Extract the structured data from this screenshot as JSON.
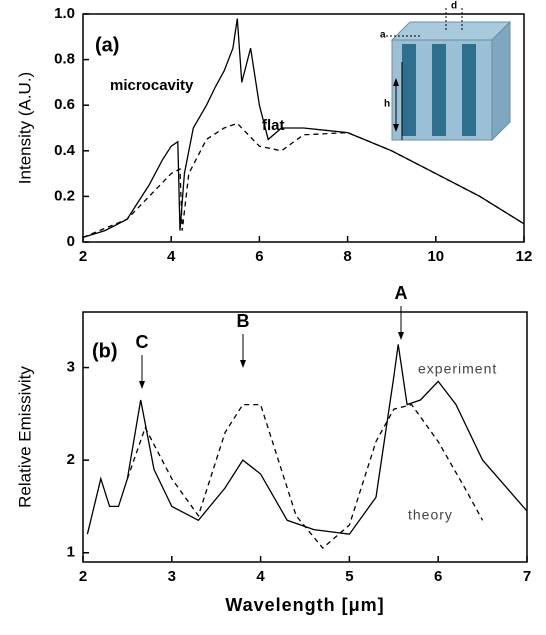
{
  "chart_data": [
    {
      "type": "line",
      "ylabel": "Intensity (A.U.)",
      "xlim": [
        2,
        12
      ],
      "xticks": [
        2,
        4,
        6,
        8,
        10,
        12
      ],
      "ylim": [
        0,
        1.0
      ],
      "yticks": [
        0,
        0.2,
        0.4,
        0.6,
        0.8,
        {
          "value": 1.0,
          "label": "1.0"
        }
      ],
      "annotations": [
        "(a)",
        "d",
        "a",
        "h"
      ],
      "series": [
        {
          "name": "microcavity",
          "color": "#000000",
          "style": "solid",
          "x": [
            2,
            2.5,
            3,
            3.5,
            3.8,
            4.0,
            4.15,
            4.2,
            4.3,
            4.5,
            4.8,
            5.0,
            5.2,
            5.4,
            5.5,
            5.6,
            5.8,
            6.0,
            6.2,
            6.5,
            7.0,
            7.5,
            8,
            9,
            10,
            11,
            12
          ],
          "values": [
            0.02,
            0.05,
            0.1,
            0.25,
            0.36,
            0.42,
            0.44,
            0.05,
            0.3,
            0.5,
            0.6,
            0.68,
            0.75,
            0.85,
            0.98,
            0.7,
            0.85,
            0.6,
            0.45,
            0.5,
            0.5,
            0.49,
            0.48,
            0.4,
            0.3,
            0.2,
            0.08
          ]
        },
        {
          "name": "flat",
          "color": "#000000",
          "style": "dashed",
          "x": [
            2,
            3,
            3.5,
            4.0,
            4.2,
            4.25,
            4.4,
            4.8,
            5.2,
            5.5,
            6,
            6.5,
            7,
            8,
            9,
            10,
            11,
            12
          ],
          "values": [
            0.02,
            0.1,
            0.2,
            0.3,
            0.32,
            0.05,
            0.3,
            0.45,
            0.5,
            0.52,
            0.42,
            0.4,
            0.47,
            0.48,
            0.4,
            0.3,
            0.2,
            0.08
          ]
        }
      ]
    },
    {
      "type": "line",
      "ylabel": "Relative Emissivity",
      "xlabel": "Wavelength [μm]",
      "xlim": [
        2,
        7
      ],
      "xticks": [
        2,
        3,
        4,
        5,
        6,
        7
      ],
      "ylim": [
        0.9,
        3.6
      ],
      "yticks": [
        1,
        2,
        3
      ],
      "annotations": [
        "(b)",
        "A",
        "B",
        "C"
      ],
      "series": [
        {
          "name": "experiment",
          "color": "#000000",
          "style": "solid",
          "x": [
            2.05,
            2.2,
            2.3,
            2.4,
            2.5,
            2.65,
            2.8,
            3,
            3.3,
            3.6,
            3.8,
            4,
            4.3,
            4.6,
            5,
            5.3,
            5.5,
            5.55,
            5.65,
            5.8,
            6,
            6.2,
            6.5,
            7
          ],
          "values": [
            1.2,
            1.8,
            1.5,
            1.5,
            1.8,
            2.65,
            1.9,
            1.5,
            1.35,
            1.7,
            2.0,
            1.85,
            1.35,
            1.25,
            1.2,
            1.6,
            2.9,
            3.25,
            2.6,
            2.65,
            2.85,
            2.6,
            2.0,
            1.45
          ]
        },
        {
          "name": "theory",
          "color": "#000000",
          "style": "dashed",
          "x": [
            2.5,
            2.7,
            3,
            3.3,
            3.6,
            3.8,
            4.0,
            4.4,
            4.7,
            5.0,
            5.3,
            5.5,
            5.7,
            6,
            6.3,
            6.5
          ],
          "values": [
            1.8,
            2.35,
            1.8,
            1.4,
            2.3,
            2.6,
            2.6,
            1.4,
            1.05,
            1.3,
            2.2,
            2.55,
            2.6,
            2.2,
            1.7,
            1.35
          ]
        }
      ]
    }
  ]
}
